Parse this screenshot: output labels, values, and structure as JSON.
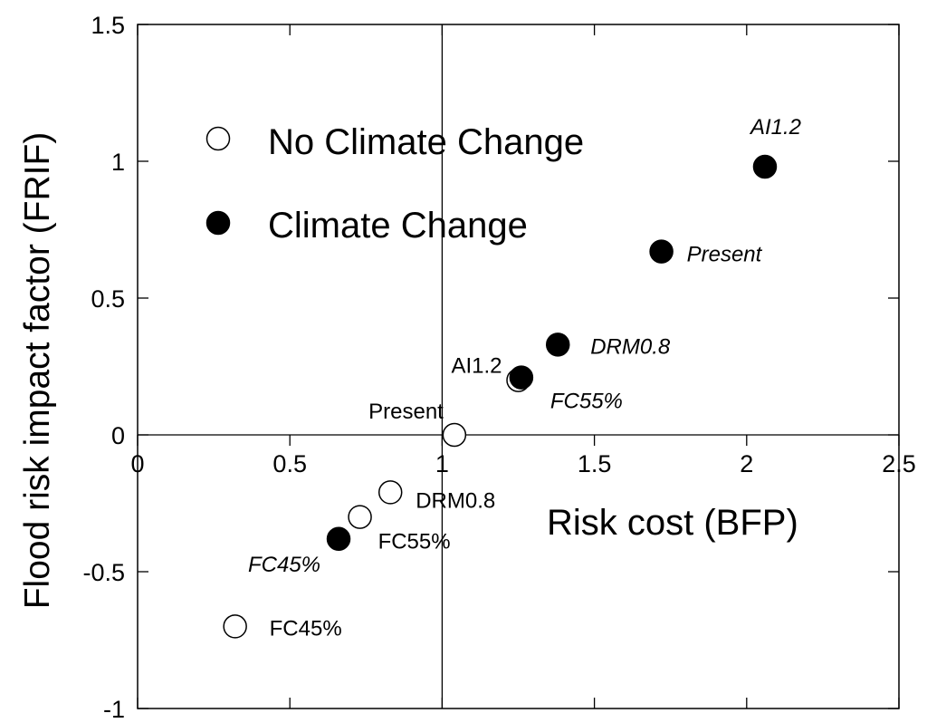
{
  "chart_data": {
    "type": "scatter",
    "xlabel": "Risk cost (BFP)",
    "ylabel": "Flood risk impact factor (FRIF)",
    "xlim": [
      0,
      2.5
    ],
    "ylim": [
      -1,
      1.5
    ],
    "x_ticks": [
      {
        "value": 0,
        "label": "0"
      },
      {
        "value": 0.5,
        "label": "0.5"
      },
      {
        "value": 1,
        "label": "1"
      },
      {
        "value": 1.5,
        "label": "1.5"
      },
      {
        "value": 2,
        "label": "2"
      },
      {
        "value": 2.5,
        "label": "2.5"
      }
    ],
    "y_ticks": [
      {
        "value": -1,
        "label": "-1"
      },
      {
        "value": -0.5,
        "label": "-0.5"
      },
      {
        "value": 0,
        "label": "0"
      },
      {
        "value": 0.5,
        "label": "0.5"
      },
      {
        "value": 1,
        "label": "1"
      },
      {
        "value": 1.5,
        "label": "1.5"
      }
    ],
    "legend": [
      {
        "name": "No Climate Change",
        "marker": "open-circle"
      },
      {
        "name": "Climate Change",
        "marker": "filled-circle"
      }
    ],
    "series": [
      {
        "name": "No Climate Change",
        "marker": "open-circle",
        "label_style": "normal",
        "points": [
          {
            "label": "Present",
            "x": 1.04,
            "y": 0.0
          },
          {
            "label": "AI1.2",
            "x": 1.25,
            "y": 0.2
          },
          {
            "label": "DRM0.8",
            "x": 0.83,
            "y": -0.21
          },
          {
            "label": "FC55%",
            "x": 0.73,
            "y": -0.3
          },
          {
            "label": "FC45%",
            "x": 0.32,
            "y": -0.7
          }
        ]
      },
      {
        "name": "Climate Change",
        "marker": "filled-circle",
        "label_style": "italic",
        "points": [
          {
            "label": "AI1.2",
            "x": 2.06,
            "y": 0.98
          },
          {
            "label": "Present",
            "x": 1.72,
            "y": 0.67
          },
          {
            "label": "DRM0.8",
            "x": 1.38,
            "y": 0.33
          },
          {
            "label": "FC55%",
            "x": 1.26,
            "y": 0.21
          },
          {
            "label": "FC45%",
            "x": 0.66,
            "y": -0.38
          }
        ]
      }
    ]
  }
}
